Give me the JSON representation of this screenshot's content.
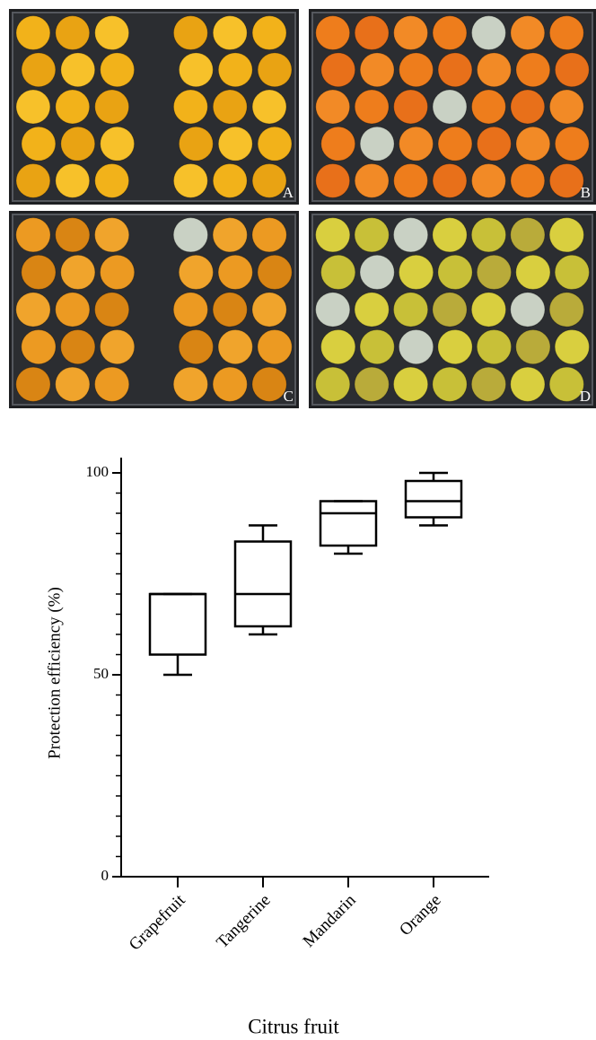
{
  "panels": [
    {
      "label": "A"
    },
    {
      "label": "B"
    },
    {
      "label": "C"
    },
    {
      "label": "D"
    }
  ],
  "chart_data": {
    "type": "box",
    "ylabel": "Protection efficiency  (%)",
    "xlabel": "Citrus fruit",
    "categories": [
      "Grapefruit",
      "Tangerine",
      "Mandarin",
      "Orange"
    ],
    "min": [
      50,
      60,
      80,
      87
    ],
    "q1": [
      55,
      62,
      82,
      89
    ],
    "median": [
      70,
      70,
      90,
      93
    ],
    "q3": [
      70,
      83,
      93,
      98
    ],
    "max": [
      70,
      87,
      93,
      100
    ],
    "color": "#000000",
    "ylim": [
      0,
      100
    ],
    "yticks": [
      0,
      50,
      100
    ],
    "yminor_ticks": [
      5,
      10,
      15,
      20,
      25,
      30,
      35,
      40,
      45,
      55,
      60,
      65,
      70,
      75,
      80,
      85,
      90,
      95
    ]
  }
}
